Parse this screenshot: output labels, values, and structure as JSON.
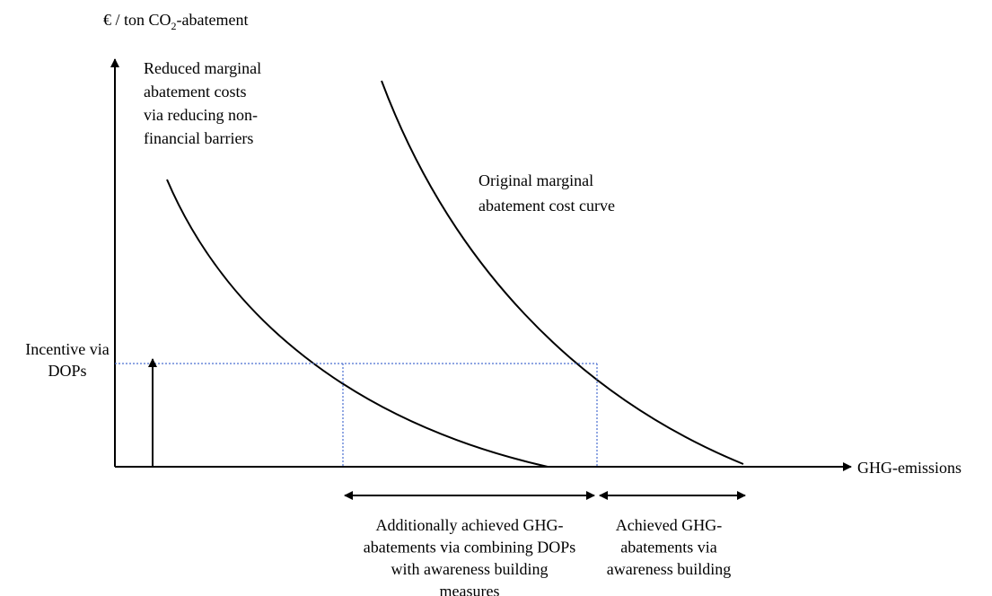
{
  "y_axis_label": {
    "prefix": "€ / ton CO",
    "subscript": "2",
    "suffix": "-abatement"
  },
  "x_axis_label": "GHG-emissions",
  "reduced_curve_label": [
    "Reduced marginal",
    "abatement costs",
    "via reducing non-",
    "financial barriers"
  ],
  "original_curve_label": [
    "Original marginal",
    "abatement cost curve"
  ],
  "incentive_label": [
    "Incentive via",
    "DOPs"
  ],
  "additional_abatement_label": [
    "Additionally achieved GHG-",
    "abatements via combining DOPs",
    "with awareness building",
    "measures"
  ],
  "awareness_abatement_label": [
    "Achieved GHG-",
    "abatements via",
    "awareness building"
  ]
}
